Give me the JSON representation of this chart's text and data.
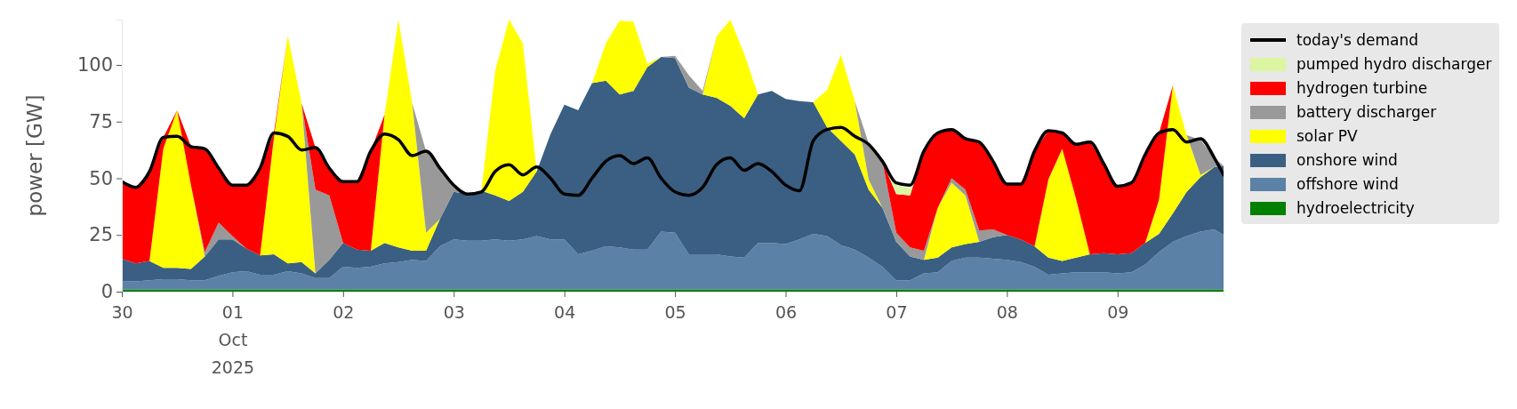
{
  "chart_data": {
    "type": "area",
    "stacked": true,
    "ylabel": "power [GW]",
    "ylim": [
      0,
      120
    ],
    "yticks": [
      0,
      25,
      50,
      75,
      100
    ],
    "xlim": [
      "2025-09-30T00:00",
      "2025-10-09T23:00"
    ],
    "xticks": [
      {
        "value": "2025-09-30",
        "label": "30"
      },
      {
        "value": "2025-10-01",
        "label": "01\nOct\n2025"
      },
      {
        "value": "2025-10-02",
        "label": "02"
      },
      {
        "value": "2025-10-03",
        "label": "03"
      },
      {
        "value": "2025-10-04",
        "label": "04"
      },
      {
        "value": "2025-10-05",
        "label": "05"
      },
      {
        "value": "2025-10-06",
        "label": "06"
      },
      {
        "value": "2025-10-07",
        "label": "07"
      },
      {
        "value": "2025-10-08",
        "label": "08"
      },
      {
        "value": "2025-10-09",
        "label": "09"
      }
    ],
    "grid": false,
    "legend": "right",
    "x": [
      "2025-09-30T00:00",
      "2025-09-30T03:00",
      "2025-09-30T06:00",
      "2025-09-30T09:00",
      "2025-09-30T12:00",
      "2025-09-30T15:00",
      "2025-09-30T18:00",
      "2025-09-30T21:00",
      "2025-10-01T00:00",
      "2025-10-01T03:00",
      "2025-10-01T06:00",
      "2025-10-01T09:00",
      "2025-10-01T12:00",
      "2025-10-01T15:00",
      "2025-10-01T18:00",
      "2025-10-01T21:00",
      "2025-10-02T00:00",
      "2025-10-02T03:00",
      "2025-10-02T06:00",
      "2025-10-02T09:00",
      "2025-10-02T12:00",
      "2025-10-02T15:00",
      "2025-10-02T18:00",
      "2025-10-02T21:00",
      "2025-10-03T00:00",
      "2025-10-03T03:00",
      "2025-10-03T06:00",
      "2025-10-03T09:00",
      "2025-10-03T12:00",
      "2025-10-03T15:00",
      "2025-10-03T18:00",
      "2025-10-03T21:00",
      "2025-10-04T00:00",
      "2025-10-04T03:00",
      "2025-10-04T06:00",
      "2025-10-04T09:00",
      "2025-10-04T12:00",
      "2025-10-04T15:00",
      "2025-10-04T18:00",
      "2025-10-04T21:00",
      "2025-10-05T00:00",
      "2025-10-05T03:00",
      "2025-10-05T06:00",
      "2025-10-05T09:00",
      "2025-10-05T12:00",
      "2025-10-05T15:00",
      "2025-10-05T18:00",
      "2025-10-05T21:00",
      "2025-10-06T00:00",
      "2025-10-06T03:00",
      "2025-10-06T06:00",
      "2025-10-06T09:00",
      "2025-10-06T12:00",
      "2025-10-06T15:00",
      "2025-10-06T18:00",
      "2025-10-06T21:00",
      "2025-10-07T00:00",
      "2025-10-07T03:00",
      "2025-10-07T06:00",
      "2025-10-07T09:00",
      "2025-10-07T12:00",
      "2025-10-07T15:00",
      "2025-10-07T18:00",
      "2025-10-07T21:00",
      "2025-10-08T00:00",
      "2025-10-08T03:00",
      "2025-10-08T06:00",
      "2025-10-08T09:00",
      "2025-10-08T12:00",
      "2025-10-08T15:00",
      "2025-10-08T18:00",
      "2025-10-08T21:00",
      "2025-10-09T00:00",
      "2025-10-09T03:00",
      "2025-10-09T06:00",
      "2025-10-09T09:00",
      "2025-10-09T12:00",
      "2025-10-09T15:00",
      "2025-10-09T18:00",
      "2025-10-09T21:00",
      "2025-10-09T23:00"
    ],
    "series": [
      {
        "name": "hydroelectricity",
        "color": "#008000",
        "values": [
          1,
          1,
          1,
          1,
          1,
          1,
          1,
          1,
          1,
          1,
          1,
          1,
          1,
          1,
          1,
          1,
          1,
          1,
          1,
          1,
          1,
          1,
          1,
          1,
          1,
          1,
          1,
          1,
          1,
          1,
          1,
          1,
          1,
          1,
          1,
          1,
          1,
          1,
          1,
          1,
          1,
          1,
          1,
          1,
          1,
          1,
          1,
          1,
          1,
          1,
          1,
          1,
          1,
          1,
          1,
          1,
          1,
          1,
          1,
          1,
          1,
          1,
          1,
          1,
          1,
          1,
          1,
          1,
          1,
          1,
          1,
          1,
          1,
          1,
          1,
          1,
          1,
          1,
          1,
          1,
          1
        ]
      },
      {
        "name": "offshore wind",
        "color": "#5b81a6",
        "values": [
          3.5,
          3.5,
          4,
          4.5,
          4.5,
          4,
          4,
          6,
          7.5,
          8,
          6.5,
          6.5,
          8,
          7,
          5,
          5,
          10,
          9.5,
          10,
          11.5,
          12,
          13,
          12.5,
          19,
          22,
          21.5,
          21.5,
          22,
          21.5,
          22,
          23.5,
          22,
          22,
          15.5,
          17,
          19,
          18.5,
          17.5,
          17.5,
          25.5,
          25,
          15.5,
          15.5,
          15.5,
          14.5,
          14,
          20.5,
          20.5,
          20,
          22,
          24.5,
          23.5,
          19.5,
          17.5,
          14,
          10,
          4,
          4,
          7,
          7.5,
          12.5,
          14,
          14,
          13.5,
          13,
          12,
          10,
          6.5,
          7,
          7.5,
          7.5,
          7.5,
          7,
          7.5,
          11,
          16.5,
          21,
          23.5,
          25.5,
          26.5,
          24
        ]
      },
      {
        "name": "onshore wind",
        "color": "#3b5f82",
        "values": [
          10,
          8,
          8.5,
          5,
          5,
          5,
          10.5,
          16,
          14.5,
          10,
          8.5,
          9,
          3.5,
          5,
          2,
          8,
          10.5,
          8,
          7,
          9,
          6.5,
          4,
          4.5,
          12,
          21,
          20.5,
          22,
          19.5,
          17.5,
          21,
          28.5,
          46.5,
          59.5,
          63.5,
          74,
          73,
          67.5,
          70,
          80.5,
          77,
          77,
          73.5,
          70.5,
          69,
          66.5,
          61.5,
          65.5,
          67,
          64,
          61,
          58,
          48,
          46,
          42,
          30,
          26,
          17,
          10.5,
          6,
          6.5,
          6,
          6,
          7,
          9.5,
          11,
          10,
          9,
          7.5,
          5.5,
          6.5,
          8,
          8.5,
          8.5,
          8.5,
          9.5,
          8,
          12.5,
          19.5,
          24,
          27.5,
          30.5
        ]
      },
      {
        "name": "solar PV",
        "color": "#ffff00",
        "values": [
          null,
          null,
          0,
          52.5,
          69.5,
          37,
          0,
          null,
          null,
          null,
          0,
          51.5,
          100.5,
          70,
          0,
          null,
          null,
          null,
          0,
          56.5,
          100.5,
          65,
          8,
          0,
          null,
          null,
          0,
          55,
          80,
          65.5,
          0,
          null,
          null,
          null,
          0,
          16.5,
          32.5,
          30.5,
          1.5,
          0,
          null,
          null,
          0,
          27,
          38,
          28.5,
          0,
          null,
          null,
          null,
          0,
          16.5,
          38,
          23.5,
          4.5,
          0,
          null,
          null,
          0,
          22,
          28.5,
          21.5,
          0,
          null,
          null,
          null,
          0,
          34.5,
          49.5,
          26,
          0,
          null,
          null,
          null,
          0,
          15,
          56.5,
          25,
          1,
          0,
          null
        ]
      },
      {
        "name": "battery discharger",
        "color": "#999999",
        "values": [
          null,
          null,
          null,
          null,
          null,
          0,
          2,
          7.5,
          1.5,
          0,
          null,
          null,
          null,
          0,
          37,
          28.5,
          0,
          null,
          null,
          null,
          null,
          0,
          36,
          22.5,
          2,
          0,
          null,
          null,
          null,
          null,
          null,
          null,
          null,
          null,
          null,
          null,
          null,
          null,
          null,
          0,
          1,
          5.5,
          1.5,
          0,
          null,
          null,
          null,
          null,
          null,
          null,
          null,
          null,
          null,
          0,
          16,
          20.5,
          4,
          4,
          4,
          0,
          2,
          2.5,
          5,
          3.5,
          0,
          null,
          null,
          null,
          null,
          null,
          null,
          null,
          null,
          null,
          null,
          null,
          null,
          0,
          15.5,
          4,
          0
        ]
      },
      {
        "name": "hydrogen turbine",
        "color": "#ff0000",
        "values": [
          34,
          33.5,
          39.5,
          5,
          0,
          17,
          45.5,
          24,
          22.5,
          28,
          38.5,
          2,
          0,
          0,
          18.5,
          12,
          27,
          30,
          44,
          0,
          null,
          null,
          null,
          null,
          null,
          null,
          null,
          null,
          null,
          null,
          null,
          null,
          null,
          null,
          null,
          null,
          null,
          null,
          null,
          null,
          null,
          null,
          null,
          null,
          null,
          null,
          null,
          null,
          null,
          null,
          null,
          null,
          null,
          null,
          null,
          0,
          17,
          23,
          44,
          33,
          21.5,
          22.5,
          39,
          30,
          22.5,
          24.5,
          42,
          21.5,
          7,
          24,
          49.5,
          39.5,
          30,
          31,
          39,
          29.5,
          0,
          null,
          null,
          null,
          null
        ]
      },
      {
        "name": "pumped hydro discharger",
        "color": "#dcf5a0",
        "values": [
          null,
          null,
          null,
          null,
          null,
          null,
          null,
          null,
          null,
          null,
          null,
          null,
          null,
          null,
          null,
          null,
          null,
          null,
          null,
          null,
          null,
          null,
          null,
          null,
          null,
          null,
          null,
          null,
          null,
          null,
          null,
          null,
          null,
          null,
          null,
          null,
          null,
          null,
          null,
          null,
          null,
          null,
          null,
          null,
          null,
          null,
          null,
          null,
          null,
          null,
          null,
          null,
          null,
          null,
          null,
          0,
          4,
          3,
          0,
          null,
          null,
          null,
          null,
          null,
          null,
          null,
          null,
          null,
          null,
          null,
          null,
          null,
          null,
          null,
          null,
          null,
          null,
          null,
          null,
          null,
          null
        ]
      },
      {
        "name": "today's demand",
        "type": "line",
        "color": "#000000",
        "values": [
          48.5,
          46,
          53,
          68,
          68.5,
          64,
          63,
          54.5,
          47,
          47,
          54.5,
          70,
          68.5,
          62.5,
          63.5,
          54.5,
          48.5,
          48.5,
          62,
          69.5,
          67,
          60,
          62,
          54.5,
          47,
          43,
          44,
          53,
          56,
          51.5,
          55,
          50,
          43,
          42.5,
          50,
          57.5,
          60,
          56.5,
          59,
          50,
          44,
          42.5,
          46,
          56,
          59,
          53.5,
          56.5,
          53,
          47,
          44.5,
          66.5,
          71.5,
          72.5,
          68.5,
          65,
          57.5,
          48,
          47,
          62,
          70,
          71.5,
          67.5,
          66,
          57.5,
          47.5,
          47.5,
          62,
          71,
          70,
          65,
          66,
          56.5,
          46.5,
          48,
          60.5,
          70,
          71.5,
          66,
          67.5,
          59,
          51.5
        ]
      }
    ]
  }
}
